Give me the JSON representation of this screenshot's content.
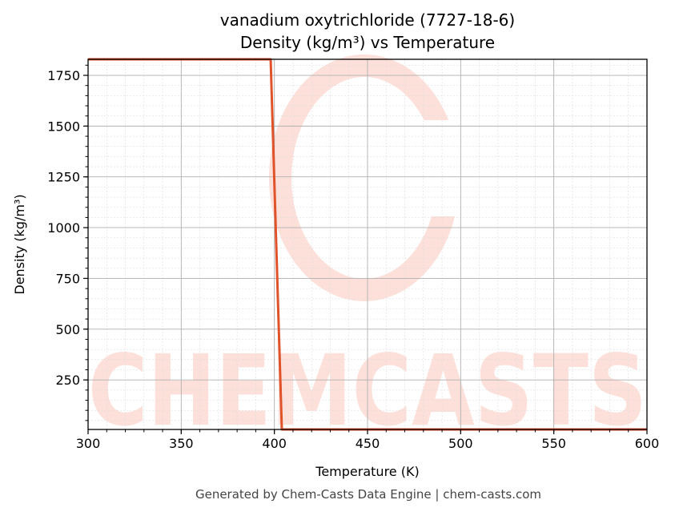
{
  "title": {
    "line1": "vanadium oxytrichloride (7727-18-6)",
    "line2": "Density (kg/m³) vs Temperature"
  },
  "footer": "Generated by Chem-Casts Data Engine | chem-casts.com",
  "watermark": "CHEMCASTS",
  "colors": {
    "line": "#e0522a",
    "watermark": "#fde0da",
    "grid_major": "#b0b0b0",
    "grid_minor": "#dddddd"
  },
  "chart_data": {
    "type": "line",
    "title": "vanadium oxytrichloride (7727-18-6)\nDensity (kg/m³) vs Temperature",
    "xlabel": "Temperature (K)",
    "ylabel": "Density (kg/m³)",
    "xlim": [
      300,
      600
    ],
    "ylim": [
      6,
      1829
    ],
    "xticks": [
      300,
      350,
      400,
      450,
      500,
      550,
      600
    ],
    "yticks": [
      250,
      500,
      750,
      1000,
      1250,
      1500,
      1750
    ],
    "x_minor_step": 10,
    "y_minor_step": 50,
    "grid": true,
    "legend": null,
    "series": [
      {
        "name": "Density",
        "x": [
          300,
          350,
          398,
          404,
          450,
          500,
          550,
          600
        ],
        "y": [
          1829,
          1829,
          1829,
          6,
          6,
          6,
          6,
          6
        ]
      }
    ]
  }
}
